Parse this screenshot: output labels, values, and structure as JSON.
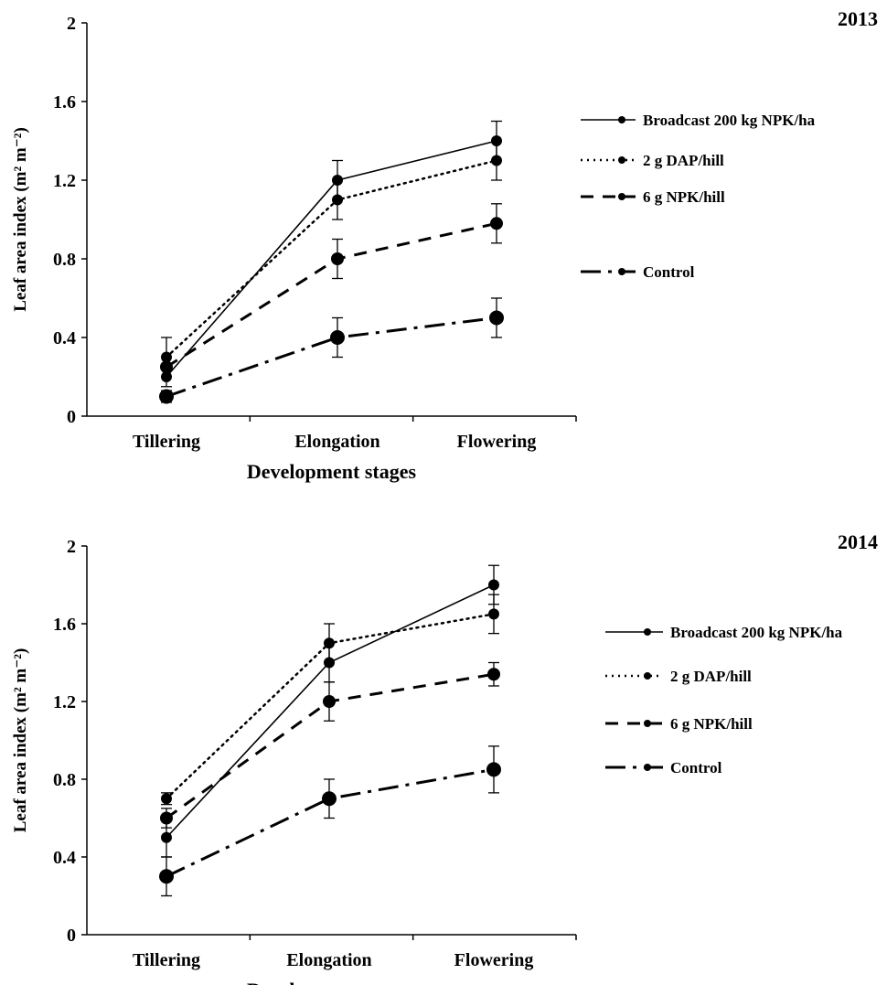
{
  "chart_data": [
    {
      "type": "line",
      "title": "2013",
      "xlabel": "Development stages",
      "ylabel": "Leaf area index (m² m⁻²)",
      "categories": [
        "Tillering",
        "Elongation",
        "Flowering"
      ],
      "ylim": [
        0,
        2
      ],
      "yticks": [
        "0",
        "0.4",
        "0.8",
        "1.2",
        "1.6",
        "2"
      ],
      "legend_position": "right",
      "grid": false,
      "series": [
        {
          "name": "Broadcast 200 kg NPK/ha",
          "style": "solid",
          "values": [
            0.2,
            1.2,
            1.4
          ],
          "errors": [
            0.05,
            0.1,
            0.1
          ]
        },
        {
          "name": "2 g DAP/hill",
          "style": "dotted",
          "values": [
            0.3,
            1.1,
            1.3
          ],
          "errors": [
            0.1,
            0.1,
            0.1
          ]
        },
        {
          "name": "6 g NPK/hill",
          "style": "dashed",
          "values": [
            0.25,
            0.8,
            0.98
          ],
          "errors": [
            0.05,
            0.1,
            0.1
          ]
        },
        {
          "name": "Control",
          "style": "dashdot",
          "values": [
            0.1,
            0.4,
            0.5
          ],
          "errors": [
            0.03,
            0.1,
            0.1
          ]
        }
      ]
    },
    {
      "type": "line",
      "title": "2014",
      "xlabel": "Development stages",
      "ylabel": "Leaf area index (m² m⁻²)",
      "categories": [
        "Tillering",
        "Elongation",
        "Flowering"
      ],
      "ylim": [
        0,
        2
      ],
      "yticks": [
        "0",
        "0.4",
        "0.8",
        "1.2",
        "1.6",
        "2"
      ],
      "legend_position": "right",
      "grid": false,
      "series": [
        {
          "name": "Broadcast 200 kg NPK/ha",
          "style": "solid",
          "values": [
            0.5,
            1.4,
            1.8
          ],
          "errors": [
            0.1,
            0.1,
            0.1
          ]
        },
        {
          "name": "2 g DAP/hill",
          "style": "dotted",
          "values": [
            0.7,
            1.5,
            1.65
          ],
          "errors": [
            0.03,
            0.1,
            0.1
          ]
        },
        {
          "name": "6 g NPK/hill",
          "style": "dashed",
          "values": [
            0.6,
            1.2,
            1.34
          ],
          "errors": [
            0.05,
            0.1,
            0.06
          ]
        },
        {
          "name": "Control",
          "style": "dashdot",
          "values": [
            0.3,
            0.7,
            0.85
          ],
          "errors": [
            0.1,
            0.1,
            0.12
          ]
        }
      ]
    }
  ]
}
